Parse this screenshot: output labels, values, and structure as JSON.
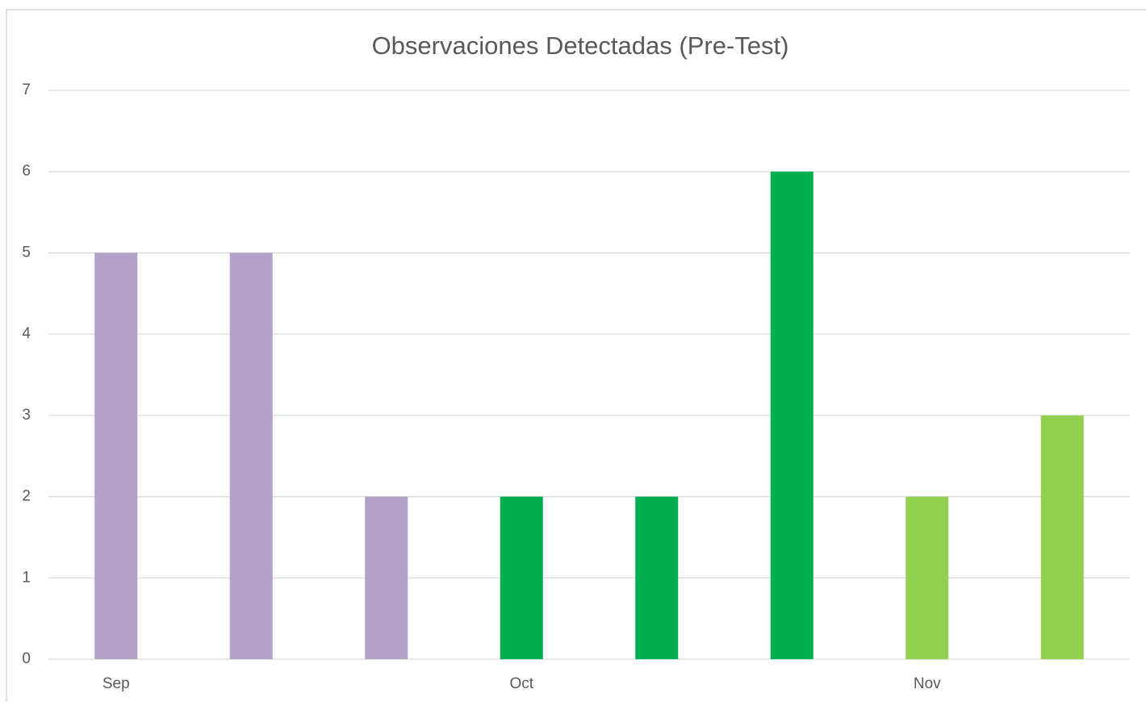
{
  "chart_data": {
    "type": "bar",
    "title": "Observaciones Detectadas (Pre-Test)",
    "categories": [
      "Sep",
      null,
      null,
      "Oct",
      null,
      null,
      "Nov",
      null
    ],
    "values": [
      5,
      5,
      2,
      2,
      2,
      6,
      2,
      3
    ],
    "colors": [
      "#b3a2c7",
      "#b3a2c7",
      "#b3a2c7",
      "#00b050",
      "#00b050",
      "#00b050",
      "#92d050",
      "#92d050"
    ],
    "ylim": [
      0,
      7
    ],
    "yticks": [
      0,
      1,
      2,
      3,
      4,
      5,
      6,
      7
    ],
    "grid": true
  }
}
